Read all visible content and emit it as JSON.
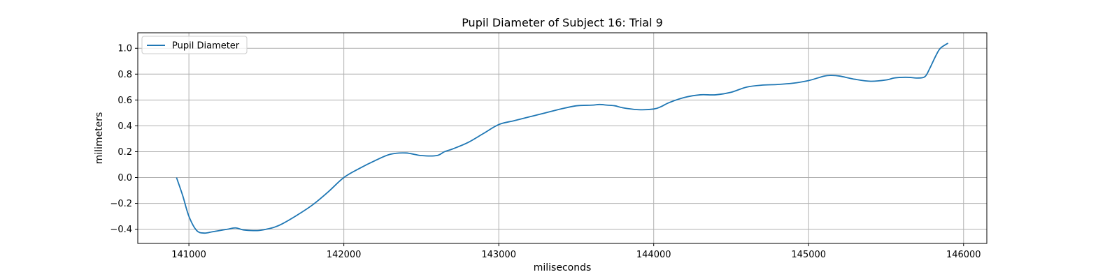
{
  "chart_data": {
    "type": "line",
    "title": "Pupil Diameter of Subject 16: Trial 9",
    "xlabel": "miliseconds",
    "ylabel": "milimeters",
    "xlim": [
      140670,
      146150
    ],
    "ylim": [
      -0.51,
      1.12
    ],
    "xticks": [
      141000,
      142000,
      143000,
      144000,
      145000,
      146000
    ],
    "yticks": [
      -0.4,
      -0.2,
      0.0,
      0.2,
      0.4,
      0.6,
      0.8,
      1.0
    ],
    "xtick_labels": [
      "141000",
      "142000",
      "143000",
      "144000",
      "145000",
      "146000"
    ],
    "ytick_labels": [
      "−0.4",
      "−0.2",
      "0.0",
      "0.2",
      "0.4",
      "0.6",
      "0.8",
      "1.0"
    ],
    "grid": true,
    "legend": {
      "position": "upper-left",
      "entries": [
        "Pupil Diameter"
      ]
    },
    "series": [
      {
        "name": "Pupil Diameter",
        "color": "#1f77b4",
        "x": [
          140920,
          140960,
          141000,
          141050,
          141100,
          141150,
          141200,
          141250,
          141300,
          141350,
          141400,
          141450,
          141500,
          141550,
          141600,
          141700,
          141800,
          141900,
          142000,
          142100,
          142200,
          142300,
          142400,
          142500,
          142600,
          142650,
          142700,
          142800,
          142900,
          143000,
          143100,
          143200,
          143300,
          143400,
          143500,
          143600,
          143650,
          143700,
          143750,
          143800,
          143900,
          144000,
          144050,
          144100,
          144200,
          144300,
          144400,
          144500,
          144600,
          144700,
          144800,
          144900,
          145000,
          145100,
          145150,
          145200,
          145300,
          145400,
          145500,
          145550,
          145600,
          145650,
          145700,
          145750,
          145780,
          145820,
          145850,
          145900
        ],
        "y": [
          0.0,
          -0.14,
          -0.3,
          -0.41,
          -0.43,
          -0.42,
          -0.41,
          -0.4,
          -0.39,
          -0.405,
          -0.41,
          -0.41,
          -0.4,
          -0.385,
          -0.36,
          -0.29,
          -0.21,
          -0.11,
          0.0,
          0.07,
          0.13,
          0.18,
          0.19,
          0.17,
          0.17,
          0.2,
          0.22,
          0.27,
          0.34,
          0.41,
          0.44,
          0.47,
          0.5,
          0.53,
          0.555,
          0.56,
          0.565,
          0.56,
          0.555,
          0.54,
          0.525,
          0.53,
          0.55,
          0.58,
          0.62,
          0.64,
          0.64,
          0.66,
          0.7,
          0.715,
          0.72,
          0.73,
          0.75,
          0.785,
          0.79,
          0.785,
          0.76,
          0.745,
          0.755,
          0.77,
          0.775,
          0.775,
          0.77,
          0.78,
          0.84,
          0.94,
          1.0,
          1.04
        ]
      }
    ]
  }
}
